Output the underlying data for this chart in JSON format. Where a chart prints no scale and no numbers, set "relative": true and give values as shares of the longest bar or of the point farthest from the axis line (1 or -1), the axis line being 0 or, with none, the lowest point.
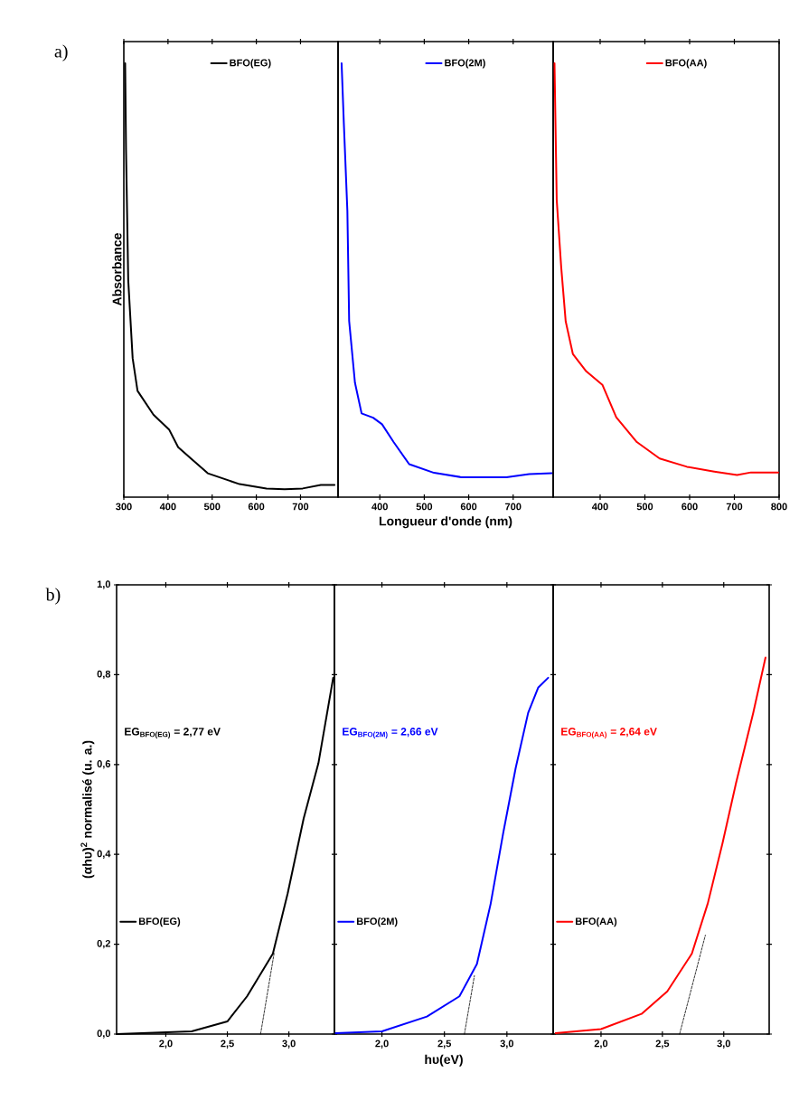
{
  "chart_data": [
    {
      "type": "line",
      "relative": true,
      "ylabel": "Absorbance",
      "annotations": [
        "a)"
      ],
      "legend": "top",
      "xlim": [
        300,
        785
      ],
      "xticks": [
        300,
        400,
        500,
        600,
        700
      ],
      "series": [
        {
          "name": "BFO(EG)",
          "color": "#000000",
          "x": [
            303,
            305,
            310,
            320,
            331,
            367,
            403,
            423,
            490,
            562,
            623,
            664,
            705,
            746,
            777
          ],
          "values": [
            1.0,
            0.8,
            0.5,
            0.32,
            0.245,
            0.19,
            0.155,
            0.115,
            0.055,
            0.03,
            0.02,
            0.018,
            0.02,
            0.028,
            0.028
          ]
        }
      ]
    },
    {
      "type": "line",
      "relative": true,
      "xlabel": "Longueur d'onde (nm)",
      "legend": "top",
      "xlim": [
        306,
        790
      ],
      "xticks": [
        400,
        500,
        600,
        700
      ],
      "series": [
        {
          "name": "BFO(2M)",
          "color": "#0000ff",
          "x": [
            314,
            319,
            327,
            331,
            344,
            359,
            385,
            405,
            431,
            466,
            522,
            583,
            685,
            736,
            787
          ],
          "values": [
            1.0,
            0.863,
            0.66,
            0.406,
            0.264,
            0.193,
            0.183,
            0.168,
            0.127,
            0.076,
            0.056,
            0.046,
            0.046,
            0.053,
            0.055
          ]
        }
      ]
    },
    {
      "type": "line",
      "relative": true,
      "legend": "top",
      "xlim": [
        295,
        800
      ],
      "xticks": [
        400,
        500,
        600,
        700,
        800
      ],
      "series": [
        {
          "name": "BFO(AA)",
          "color": "#ff0000",
          "x": [
            298,
            303,
            313,
            323,
            339,
            369,
            405,
            436,
            482,
            533,
            594,
            655,
            706,
            737,
            798
          ],
          "values": [
            1.0,
            0.684,
            0.53,
            0.405,
            0.33,
            0.29,
            0.259,
            0.184,
            0.127,
            0.089,
            0.07,
            0.059,
            0.051,
            0.057,
            0.057
          ]
        }
      ]
    },
    {
      "type": "line",
      "ylabel": "(αhυ)$^{2}$ normalisé (u. a.)",
      "annotations": [
        "b)",
        "EG$_{BFO(EG)}$ = 2,77 eV"
      ],
      "legend": "left",
      "xlim": [
        1.6,
        3.37
      ],
      "ylim": [
        0,
        1.0
      ],
      "xticks": [
        {
          "value": 2.0,
          "label": "2,0"
        },
        {
          "value": 2.5,
          "label": "2,5"
        },
        {
          "value": 3.0,
          "label": "3,0"
        }
      ],
      "yticks": [
        {
          "value": 0,
          "label": "0,0"
        },
        {
          "value": 0.2,
          "label": "0,2"
        },
        {
          "value": 0.4,
          "label": "0,4"
        },
        {
          "value": 0.6,
          "label": "0,6"
        },
        {
          "value": 0.8,
          "label": "0,8"
        },
        {
          "value": 1.0,
          "label": "1,0"
        }
      ],
      "series": [
        {
          "name": "BFO(EG)",
          "color": "#000000",
          "x": [
            1.6,
            2.21,
            2.5,
            2.66,
            2.87,
            2.99,
            3.12,
            3.24,
            3.36
          ],
          "values": [
            0,
            0.006,
            0.028,
            0.084,
            0.179,
            0.313,
            0.48,
            0.603,
            0.793
          ]
        },
        {
          "color": "#000000",
          "line_style": "dashed",
          "x": [
            2.77,
            2.88
          ],
          "values": [
            0,
            0.18
          ]
        }
      ]
    },
    {
      "type": "line",
      "xlabel": "hυ(eV)",
      "annotations": [
        "EG$_{BFO(2M)}$ = 2,66 eV"
      ],
      "legend": "left",
      "tick_labels": "x",
      "xlim": [
        1.62,
        3.37
      ],
      "ylim": [
        0,
        1.0
      ],
      "xticks": [
        {
          "value": 2.0,
          "label": "2,0"
        },
        {
          "value": 2.5,
          "label": "2,5"
        },
        {
          "value": 3.0,
          "label": "3,0"
        }
      ],
      "yticks": [
        0,
        0.2,
        0.4,
        0.6,
        0.8,
        1.0
      ],
      "series": [
        {
          "name": "BFO(2M)",
          "color": "#0000ff",
          "x": [
            1.63,
            2.0,
            2.36,
            2.62,
            2.76,
            2.87,
            2.97,
            3.07,
            3.17,
            3.25,
            3.33
          ],
          "values": [
            0.002,
            0.006,
            0.039,
            0.084,
            0.156,
            0.29,
            0.447,
            0.592,
            0.715,
            0.771,
            0.793
          ]
        },
        {
          "color": "#000000",
          "line_style": "dashed",
          "x": [
            2.66,
            2.74
          ],
          "values": [
            0,
            0.13
          ]
        }
      ]
    },
    {
      "type": "line",
      "annotations": [
        "EG$_{BFO(AA)}$ = 2,64 eV"
      ],
      "legend": "left",
      "tick_labels": "x",
      "xlim": [
        1.61,
        3.37
      ],
      "ylim": [
        0,
        1.0
      ],
      "xticks": [
        {
          "value": 2.0,
          "label": "2,0"
        },
        {
          "value": 2.5,
          "label": "2,5"
        },
        {
          "value": 3.0,
          "label": "3,0"
        }
      ],
      "yticks": [
        0,
        0.2,
        0.4,
        0.6,
        0.8,
        1.0
      ],
      "series": [
        {
          "name": "BFO(AA)",
          "color": "#ff0000",
          "x": [
            1.63,
            2.0,
            2.33,
            2.54,
            2.74,
            2.87,
            2.99,
            3.1,
            3.24,
            3.34
          ],
          "values": [
            0.002,
            0.011,
            0.045,
            0.095,
            0.179,
            0.291,
            0.425,
            0.559,
            0.715,
            0.838
          ]
        },
        {
          "color": "#000000",
          "line_style": "dashed",
          "x": [
            2.64,
            2.85
          ],
          "values": [
            0,
            0.22
          ]
        }
      ]
    }
  ]
}
